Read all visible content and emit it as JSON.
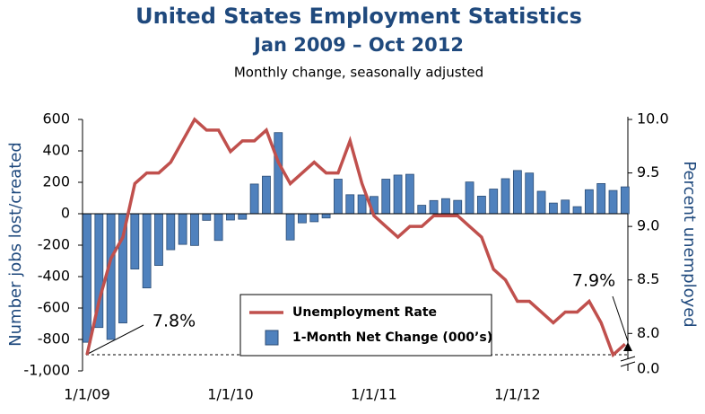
{
  "chart_data": {
    "type": "combo",
    "title": "United States Employment Statistics",
    "subtitle": "Jan 2009 – Oct 2012",
    "note": "Monthly change, seasonally adjusted",
    "y_label": "Number jobs lost/created",
    "y2_label": "Percent unemployed",
    "categories": [
      "1/1/09",
      null,
      null,
      null,
      null,
      null,
      null,
      null,
      null,
      null,
      null,
      null,
      "1/1/10",
      null,
      null,
      null,
      null,
      null,
      null,
      null,
      null,
      null,
      null,
      null,
      "1/1/11",
      null,
      null,
      null,
      null,
      null,
      null,
      null,
      null,
      null,
      null,
      null,
      "1/1/12",
      null,
      null,
      null,
      null,
      null,
      null,
      null,
      null,
      null
    ],
    "series": [
      {
        "name": "1-Month Net Change (000’s)",
        "type": "bar",
        "color": "#4f81bd",
        "axis": "y",
        "values": [
          -818,
          -724,
          -800,
          -695,
          -352,
          -472,
          -329,
          -229,
          -195,
          -202,
          -42,
          -170,
          -40,
          -35,
          189,
          239,
          516,
          -167,
          -58,
          -51,
          -27,
          220,
          121,
          120,
          110,
          220,
          246,
          251,
          54,
          84,
          96,
          85,
          202,
          112,
          157,
          223,
          275,
          259,
          143,
          68,
          87,
          45,
          153,
          192,
          148,
          171
        ]
      },
      {
        "name": "Unemployment Rate",
        "type": "line",
        "color": "#c0504d",
        "axis": "y2",
        "values": [
          7.8,
          8.3,
          8.7,
          8.9,
          9.4,
          9.5,
          9.5,
          9.6,
          9.8,
          10.0,
          9.9,
          9.9,
          9.7,
          9.8,
          9.8,
          9.9,
          9.6,
          9.4,
          9.5,
          9.6,
          9.5,
          9.5,
          9.8,
          9.4,
          9.1,
          9.0,
          8.9,
          9.0,
          9.0,
          9.1,
          9.1,
          9.1,
          9.0,
          8.9,
          8.6,
          8.5,
          8.3,
          8.3,
          8.2,
          8.1,
          8.2,
          8.2,
          8.3,
          8.1,
          7.8,
          7.9
        ]
      }
    ],
    "ylim": [
      -1000,
      600
    ],
    "yticks": [
      {
        "value": -1000,
        "label": "-1,000"
      },
      -800,
      -600,
      -400,
      -200,
      0,
      200,
      400,
      600
    ],
    "y2lim": [
      7.65,
      10.0
    ],
    "y2ticks": [
      {
        "value": 8.0,
        "label": "8.0"
      },
      {
        "value": 8.5,
        "label": "8.5"
      },
      {
        "value": 9.0,
        "label": "9.0"
      },
      {
        "value": 9.5,
        "label": "9.5"
      },
      {
        "value": 10.0,
        "label": "10.0"
      }
    ],
    "y2_break_label": "0.0",
    "annotations": [
      "7.8%",
      "7.9%"
    ],
    "legend": "bottom",
    "grid": false
  }
}
